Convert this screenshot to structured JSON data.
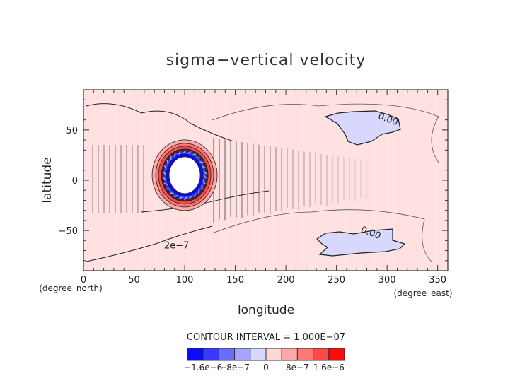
{
  "chart_data": {
    "type": "heatmap",
    "subtype": "filled-contour-map",
    "title": "sigma−vertical velocity",
    "xlabel": "longitude",
    "ylabel": "latitude",
    "x_units": "(degree_east)",
    "y_units": "(degree_north)",
    "xlim": [
      0,
      360
    ],
    "ylim": [
      -90,
      90
    ],
    "x_ticks": [
      0,
      50,
      100,
      150,
      200,
      250,
      300,
      350
    ],
    "y_ticks": [
      -50,
      0,
      50
    ],
    "x_tick_labels": [
      "0",
      "50",
      "100",
      "150",
      "200",
      "250",
      "300",
      "350"
    ],
    "y_tick_labels": [
      "−50",
      "0",
      "50"
    ],
    "contour_interval_text": "CONTOUR INTERVAL = 1.000E−07",
    "contour_labels": [
      {
        "text": "0.00",
        "lon": 300,
        "lat": 58
      },
      {
        "text": "0.00",
        "lon": 283,
        "lat": -55
      },
      {
        "text": "2e−7",
        "lon": 92,
        "lat": -68
      }
    ],
    "features": [
      {
        "name": "vortex",
        "center_lon": 100,
        "center_lat": 5,
        "inner_value": "negative (blue) ring around white core",
        "outer_value": "positive (red) ring"
      },
      {
        "name": "negative-region-north",
        "lon_range": [
          240,
          320
        ],
        "lat_range": [
          45,
          65
        ]
      },
      {
        "name": "negative-region-south",
        "lon_range": [
          225,
          320
        ],
        "lat_range": [
          -75,
          -50
        ]
      }
    ],
    "colorbar": {
      "levels": [
        -2e-06,
        -1.6e-06,
        -1.2e-06,
        -8e-07,
        -4e-07,
        0,
        4e-07,
        8e-07,
        1.2e-06,
        1.6e-06,
        2e-06
      ],
      "colors": [
        "#0a0aff",
        "#3a3aff",
        "#6a6aff",
        "#a5a5ff",
        "#d8d8ff",
        "#ffd6d6",
        "#ffa8a8",
        "#ff7878",
        "#ff4848",
        "#ff0a0a"
      ],
      "tick_labels": [
        "−1.6e−6",
        "−8e−7",
        "0",
        "8e−7",
        "1.6e−6"
      ],
      "tick_values": [
        -1.6e-06,
        -8e-07,
        0,
        8e-07,
        1.6e-06
      ]
    },
    "background_color": "#ffe0e0"
  }
}
